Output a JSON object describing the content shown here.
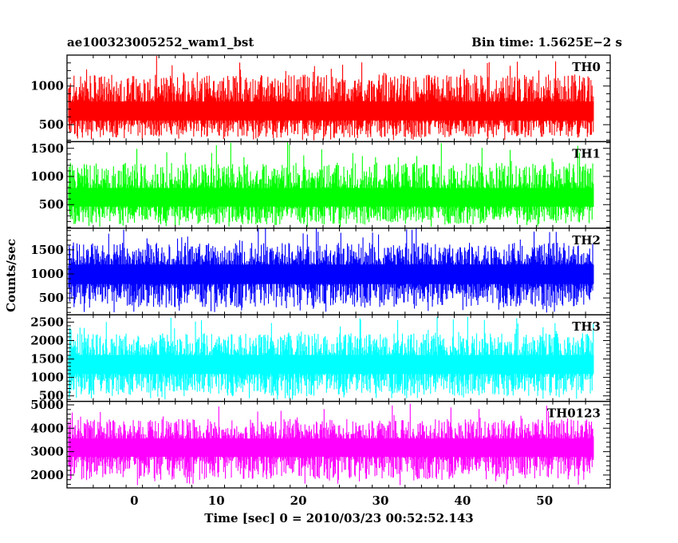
{
  "header": {
    "left_title": "ae100323005252_wam1_bst",
    "right_title": "Bin time: 1.5625E−2 s"
  },
  "chart_data": {
    "type": "line",
    "xlabel": "Time [sec] 0 = 2010/03/23 00:52:52.143",
    "ylabel": "Counts/sec",
    "xlim": [
      -8.2,
      58
    ],
    "x_ticks": [
      0,
      10,
      20,
      30,
      40,
      50
    ],
    "x_tick_labels": [
      "0",
      "10",
      "20",
      "30",
      "40",
      "50"
    ],
    "x_data_range": [
      -8,
      56
    ],
    "bin_time_s": 0.015625,
    "panels": [
      {
        "name": "TH0",
        "color": "#ff0000",
        "ylim": [
          280,
          1400
        ],
        "ticks": [
          500,
          1000
        ],
        "tick_labels": [
          "500",
          "1000"
        ],
        "mean": 650,
        "low": 330,
        "high": 1150,
        "spike_max": 1400
      },
      {
        "name": "TH1",
        "color": "#00ff00",
        "ylim": [
          80,
          1620
        ],
        "ticks": [
          500,
          1000,
          1500
        ],
        "tick_labels": [
          "500",
          "1000",
          "1500"
        ],
        "mean": 600,
        "low": 150,
        "high": 1250,
        "spike_max": 1620
      },
      {
        "name": "TH2",
        "color": "#0000ff",
        "ylim": [
          150,
          1950
        ],
        "ticks": [
          500,
          1000,
          1500
        ],
        "tick_labels": [
          "500",
          "1000",
          "1500"
        ],
        "mean": 1000,
        "low": 300,
        "high": 1650,
        "spike_max": 1950
      },
      {
        "name": "TH3",
        "color": "#00ffff",
        "ylim": [
          350,
          2700
        ],
        "ticks": [
          500,
          1000,
          1500,
          2000,
          2500
        ],
        "tick_labels": [
          "500",
          "1000",
          "1500",
          "2000",
          "2500"
        ],
        "mean": 1350,
        "low": 500,
        "high": 2200,
        "spike_max": 2650
      },
      {
        "name": "TH0123",
        "color": "#ff00ff",
        "ylim": [
          1450,
          5150
        ],
        "ticks": [
          2000,
          3000,
          4000,
          5000
        ],
        "tick_labels": [
          "2000",
          "3000",
          "4000",
          "5000"
        ],
        "mean": 3200,
        "low": 1800,
        "high": 4400,
        "spike_max": 5100
      }
    ]
  }
}
